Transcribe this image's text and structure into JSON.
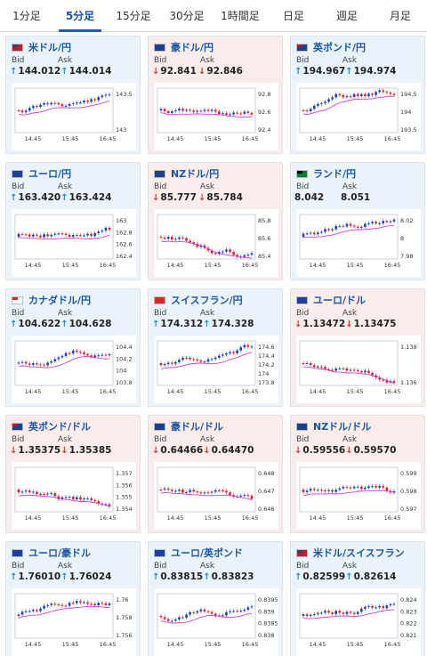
{
  "tabs": [
    {
      "label": "1分足",
      "active": false
    },
    {
      "label": "5分足",
      "active": true
    },
    {
      "label": "15分足",
      "active": false
    },
    {
      "label": "30分足",
      "active": false
    },
    {
      "label": "1時間足",
      "active": false
    },
    {
      "label": "日足",
      "active": false
    },
    {
      "label": "週足",
      "active": false
    },
    {
      "label": "月足",
      "active": false
    }
  ],
  "labels": {
    "bid": "Bid",
    "ask": "Ask"
  },
  "colors": {
    "up_arrow": "#2a8ac8",
    "down_arrow": "#d23a2a",
    "candle_up": "#1f3fbf",
    "candle_down": "#e0202a",
    "ma_line": "#d53bd9",
    "grid_line": "#b9c6d5",
    "card_up_bg": "#eaf3fb",
    "card_down_bg": "#fbecec"
  },
  "x_ticks": [
    "14:45",
    "15:45",
    "16:45"
  ],
  "cards": [
    {
      "id": "usdjpy",
      "name": "米ドル/円",
      "flag": "us",
      "trend": "up",
      "bid": "144.012",
      "ask": "144.014",
      "bid_dir": "up",
      "ask_dir": "up",
      "y_ticks": [
        "143.5",
        "143"
      ]
    },
    {
      "id": "audjpy",
      "name": "豪ドル/円",
      "flag": "au",
      "trend": "down",
      "bid": "92.841",
      "ask": "92.846",
      "bid_dir": "down",
      "ask_dir": "down",
      "y_ticks": [
        "92.8",
        "92.6",
        "92.4"
      ]
    },
    {
      "id": "gbpjpy",
      "name": "英ポンド/円",
      "flag": "gb",
      "trend": "up",
      "bid": "194.967",
      "ask": "194.974",
      "bid_dir": "up",
      "ask_dir": "up",
      "y_ticks": [
        "194.5",
        "194",
        "193.5"
      ]
    },
    {
      "id": "eurjpy",
      "name": "ユーロ/円",
      "flag": "eu",
      "trend": "up",
      "bid": "163.420",
      "ask": "163.424",
      "bid_dir": "up",
      "ask_dir": "up",
      "y_ticks": [
        "163",
        "162.8",
        "162.6",
        "162.4"
      ]
    },
    {
      "id": "nzdjpy",
      "name": "NZドル/円",
      "flag": "nz",
      "trend": "down",
      "bid": "85.777",
      "ask": "85.784",
      "bid_dir": "down",
      "ask_dir": "down",
      "y_ticks": [
        "85.8",
        "85.6",
        "85.4"
      ]
    },
    {
      "id": "zarjpy",
      "name": "ランド/円",
      "flag": "za",
      "trend": "up",
      "bid": "8.042",
      "ask": "8.051",
      "bid_dir": "none",
      "ask_dir": "none",
      "y_ticks": [
        "8.02",
        "8",
        "7.98"
      ]
    },
    {
      "id": "cadjpy",
      "name": "カナダドル/円",
      "flag": "ca",
      "trend": "up",
      "bid": "104.622",
      "ask": "104.628",
      "bid_dir": "up",
      "ask_dir": "up",
      "y_ticks": [
        "104.4",
        "104.2",
        "104",
        "103.8"
      ]
    },
    {
      "id": "chfjpy",
      "name": "スイスフラン/円",
      "flag": "ch",
      "trend": "up",
      "bid": "174.312",
      "ask": "174.328",
      "bid_dir": "up",
      "ask_dir": "up",
      "y_ticks": [
        "174.6",
        "174.4",
        "174.2",
        "174",
        "173.8"
      ]
    },
    {
      "id": "eurusd",
      "name": "ユーロ/ドル",
      "flag": "eu",
      "trend": "down",
      "bid": "1.13472",
      "ask": "1.13475",
      "bid_dir": "down",
      "ask_dir": "down",
      "y_ticks": [
        "1.138",
        "1.136"
      ]
    },
    {
      "id": "gbpusd",
      "name": "英ポンド/ドル",
      "flag": "gb",
      "trend": "down",
      "bid": "1.35375",
      "ask": "1.35385",
      "bid_dir": "down",
      "ask_dir": "down",
      "y_ticks": [
        "1.357",
        "1.356",
        "1.355",
        "1.354"
      ]
    },
    {
      "id": "audusd",
      "name": "豪ドル/ドル",
      "flag": "au",
      "trend": "down",
      "bid": "0.64466",
      "ask": "0.64470",
      "bid_dir": "down",
      "ask_dir": "down",
      "y_ticks": [
        "0.648",
        "0.647",
        "0.646"
      ]
    },
    {
      "id": "nzdusd",
      "name": "NZドル/ドル",
      "flag": "nz",
      "trend": "down",
      "bid": "0.59556",
      "ask": "0.59570",
      "bid_dir": "down",
      "ask_dir": "down",
      "y_ticks": [
        "0.599",
        "0.598",
        "0.597"
      ]
    },
    {
      "id": "euraud",
      "name": "ユーロ/豪ドル",
      "flag": "eu",
      "trend": "up",
      "bid": "1.76010",
      "ask": "1.76024",
      "bid_dir": "up",
      "ask_dir": "up",
      "y_ticks": [
        "1.76",
        "1.758",
        "1.756"
      ]
    },
    {
      "id": "eurgbp",
      "name": "ユーロ/英ポンド",
      "flag": "eu",
      "trend": "up",
      "bid": "0.83815",
      "ask": "0.83823",
      "bid_dir": "up",
      "ask_dir": "up",
      "y_ticks": [
        "0.8395",
        "0.839",
        "0.8385",
        "0.838"
      ]
    },
    {
      "id": "usdchf",
      "name": "米ドル/スイスフラン",
      "flag": "us",
      "trend": "up",
      "bid": "0.82599",
      "ask": "0.82614",
      "bid_dir": "up",
      "ask_dir": "up",
      "y_ticks": [
        "0.824",
        "0.823",
        "0.822",
        "0.821"
      ]
    }
  ]
}
